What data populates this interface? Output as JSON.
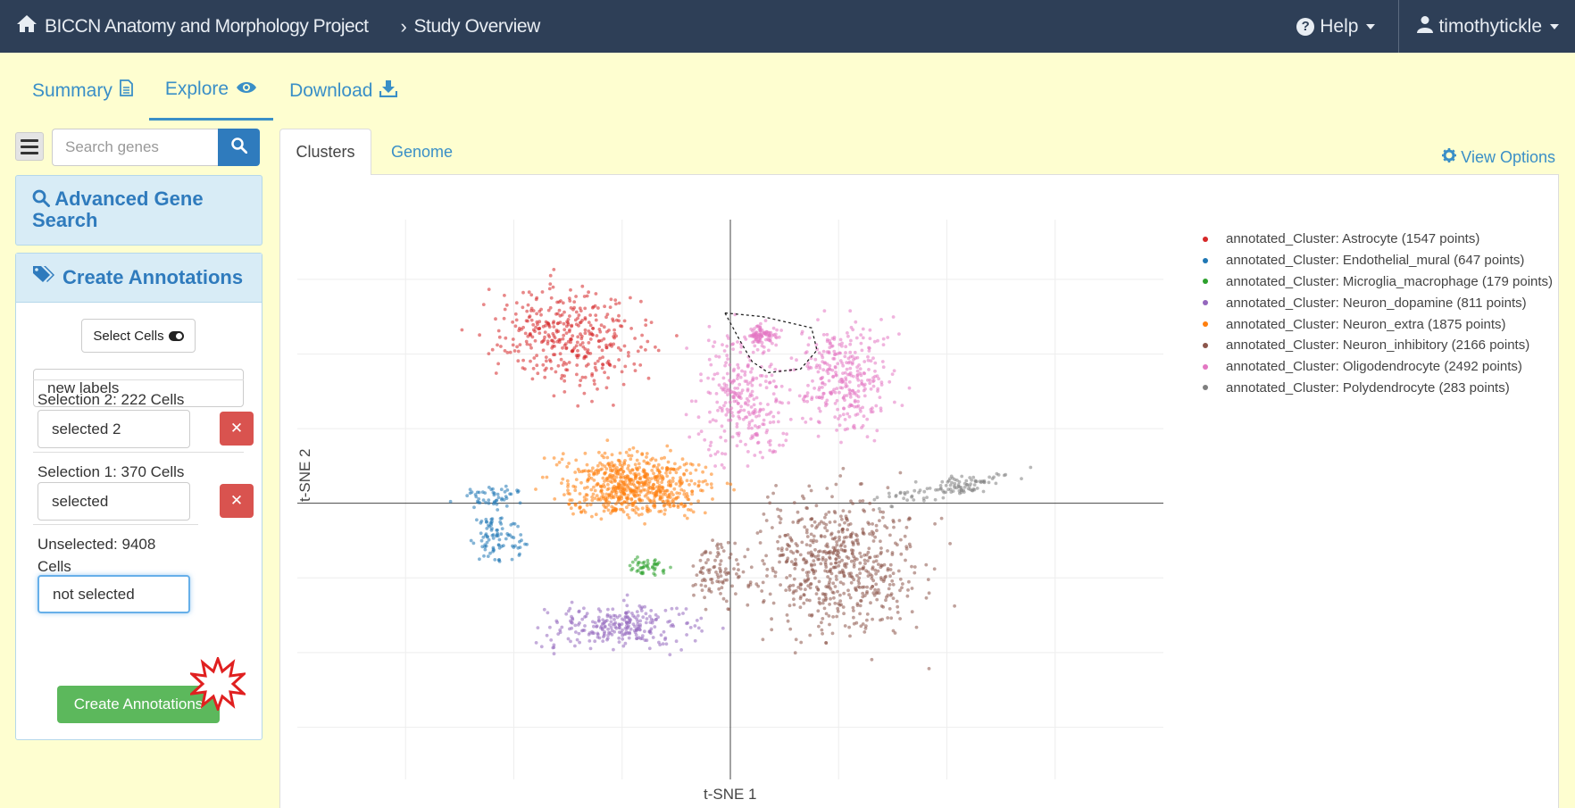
{
  "navbar": {
    "brand": "BICCN Anatomy and Morphology Project",
    "breadcrumb": "Study Overview",
    "help": "Help",
    "user": "timothytickle"
  },
  "study_tabs": {
    "summary": "Summary",
    "explore": "Explore",
    "download": "Download"
  },
  "sidebar": {
    "search_placeholder": "Search genes",
    "advanced_search": "Advanced Gene Search",
    "create_annotations_title": "Create Annotations",
    "select_cells": "Select Cells",
    "label_name": "new labels",
    "selections": [
      {
        "title": "Selection 2: 222 Cells",
        "value": "selected 2"
      },
      {
        "title": "Selection 1: 370 Cells",
        "value": "selected"
      }
    ],
    "unselected": {
      "title": "Unselected: 9408 Cells",
      "value": "not selected"
    },
    "create_button": "Create Annotations"
  },
  "plot_tabs": {
    "clusters": "Clusters",
    "genome": "Genome",
    "view_options": "View Options"
  },
  "chart_data": {
    "type": "scatter",
    "xlabel": "t-SNE 1",
    "ylabel": "t-SNE 2",
    "xlim": [
      -40,
      40
    ],
    "ylim": [
      -37,
      38
    ],
    "grid": true,
    "legend_position": "top-right",
    "series": [
      {
        "name": "annotated_Cluster: Astrocyte (1547 points)",
        "color": "#d62728",
        "count": 1547,
        "centroid": [
          -15,
          22
        ],
        "clusters": [
          [
            -15,
            22,
            6.5,
            5.5,
            380,
            -0.45
          ]
        ]
      },
      {
        "name": "annotated_Cluster: Endothelial_mural (647 points)",
        "color": "#1f77b4",
        "count": 647,
        "centroid": [
          -21,
          -2
        ],
        "clusters": [
          [
            -22,
            1,
            3,
            1.2,
            50,
            0
          ],
          [
            -21.5,
            -4.5,
            1.8,
            3.2,
            90,
            0.3
          ]
        ]
      },
      {
        "name": "annotated_Cluster: Microglia_macrophage (179 points)",
        "color": "#2ca02c",
        "count": 179,
        "centroid": [
          -7.5,
          -8.5
        ],
        "clusters": [
          [
            -7.5,
            -8.5,
            1.6,
            1.3,
            45,
            0
          ]
        ]
      },
      {
        "name": "annotated_Cluster: Neuron_dopamine (811 points)",
        "color": "#9467bd",
        "count": 811,
        "centroid": [
          -10,
          -16.5
        ],
        "clusters": [
          [
            -10,
            -16.5,
            6.5,
            2.6,
            260,
            0
          ]
        ]
      },
      {
        "name": "annotated_Cluster: Neuron_extra (1875 points)",
        "color": "#ff7f0e",
        "count": 1875,
        "centroid": [
          -9,
          2.5
        ],
        "clusters": [
          [
            -9,
            2.5,
            6,
            3.8,
            650,
            0
          ]
        ]
      },
      {
        "name": "annotated_Cluster: Neuron_inhibitory (2166 points)",
        "color": "#8c564b",
        "count": 2166,
        "centroid": [
          10,
          -8
        ],
        "clusters": [
          [
            10,
            -8,
            6.5,
            8.5,
            620,
            0
          ],
          [
            -1,
            -9,
            2,
            4,
            90,
            0
          ]
        ]
      },
      {
        "name": "annotated_Cluster: Oligodendrocyte (2492 points)",
        "color": "#e377c2",
        "count": 2492,
        "centroid": [
          3,
          18
        ],
        "clusters": [
          [
            1,
            14,
            3.5,
            7.5,
            280,
            0
          ],
          [
            10.5,
            17,
            4,
            6.5,
            320,
            0
          ],
          [
            3,
            22.5,
            1.3,
            1.1,
            90,
            0
          ]
        ]
      },
      {
        "name": "annotated_Cluster: Polydendrocyte (283 points)",
        "color": "#7f7f7f",
        "count": 283,
        "centroid": [
          20,
          2
        ],
        "clusters": [
          [
            20,
            2,
            5.5,
            1.2,
            110,
            0.25
          ]
        ]
      }
    ]
  }
}
